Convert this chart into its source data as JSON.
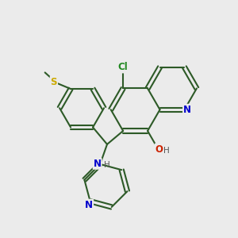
{
  "bg_color": "#ebebeb",
  "bond_color": "#2d5a27",
  "bond_width": 1.5,
  "N_color": "#0000cc",
  "O_color": "#cc2200",
  "S_color": "#ccaa00",
  "Cl_color": "#228822",
  "H_color": "#555555",
  "font_size": 8.5,
  "fig_size": [
    3.0,
    3.0
  ],
  "dpi": 100,
  "xlim": [
    0,
    10
  ],
  "ylim": [
    0,
    10
  ]
}
